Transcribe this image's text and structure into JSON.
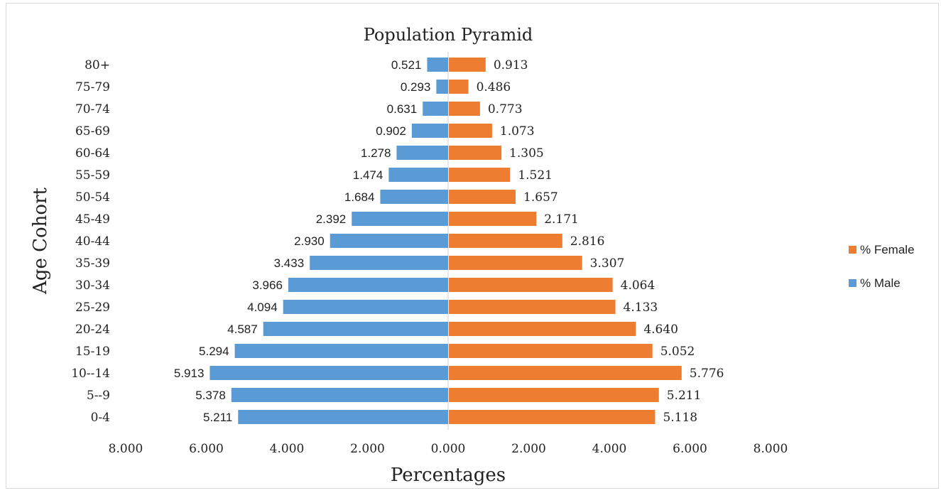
{
  "chart_data": {
    "type": "bar",
    "orientation": "horizontal",
    "title": "Population Pyramid",
    "xlabel": "Percentages",
    "ylabel": "Age Cohort",
    "categories": [
      "80+",
      "75-79",
      "70-74",
      "65-69",
      "60-64",
      "55-59",
      "50-54",
      "45-49",
      "40-44",
      "35-39",
      "30-34",
      "25-29",
      "20-24",
      "15-19",
      "10--14",
      "5--9",
      "0-4"
    ],
    "series": [
      {
        "name": "% Male",
        "color": "#5b9bd5",
        "side": "left",
        "values": [
          0.521,
          0.293,
          0.631,
          0.902,
          1.278,
          1.474,
          1.684,
          2.392,
          2.93,
          3.433,
          3.966,
          4.094,
          4.587,
          5.294,
          5.913,
          5.378,
          5.211
        ],
        "labels": [
          "0.521",
          "0.293",
          "0.631",
          "0.902",
          "1.278",
          "1.474",
          "1.684",
          "2.392",
          "2.930",
          "3.433",
          "3.966",
          "4.094",
          "4.587",
          "5.294",
          "5.913",
          "5.378",
          "5.211"
        ]
      },
      {
        "name": "% Female",
        "color": "#ed7d31",
        "side": "right",
        "values": [
          0.913,
          0.486,
          0.773,
          1.073,
          1.305,
          1.521,
          1.657,
          2.171,
          2.816,
          3.307,
          4.064,
          4.133,
          4.64,
          5.052,
          5.776,
          5.211,
          5.118
        ],
        "labels": [
          "0.913",
          "0.486",
          "0.773",
          "1.073",
          "1.305",
          "1.521",
          "1.657",
          "2.171",
          "2.816",
          "3.307",
          "4.064",
          "4.133",
          "4.640",
          "5.052",
          "5.776",
          "5.211",
          "5.118"
        ]
      }
    ],
    "xlim": [
      -8,
      8
    ],
    "xticks": [
      "8.000",
      "6.000",
      "4.000",
      "2.000",
      "0.000",
      "2.000",
      "4.000",
      "6.000",
      "8.000"
    ],
    "legend": [
      "% Female",
      "% Male"
    ],
    "legend_position": "right",
    "grid": false
  }
}
